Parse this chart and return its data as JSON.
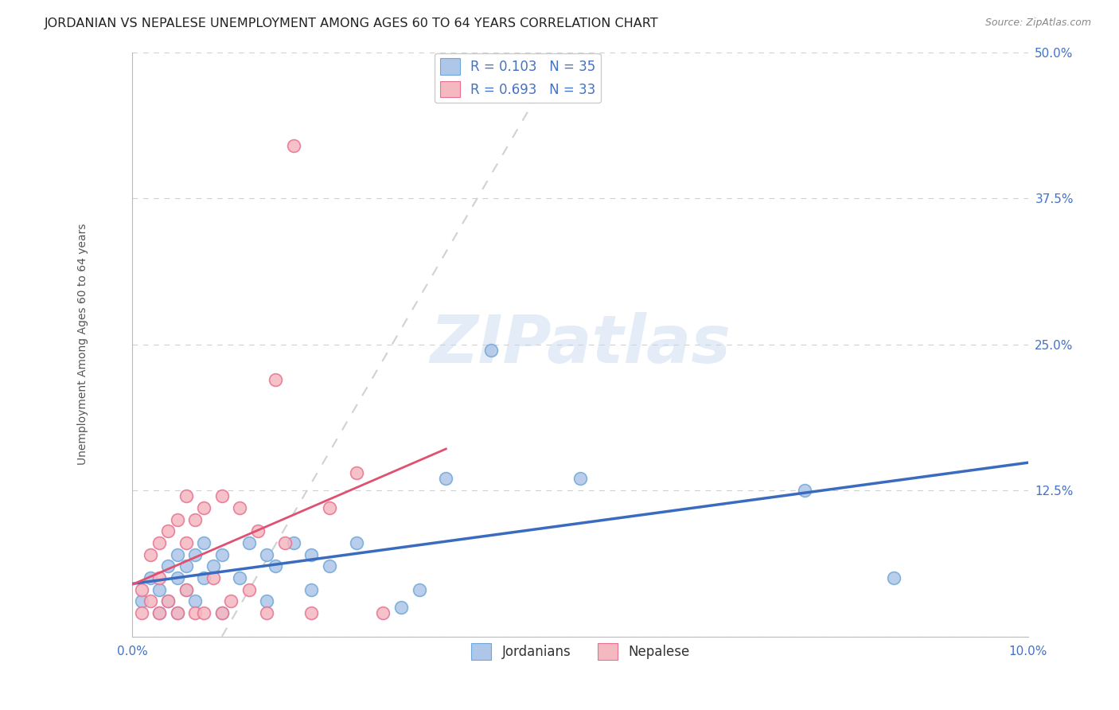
{
  "title": "JORDANIAN VS NEPALESE UNEMPLOYMENT AMONG AGES 60 TO 64 YEARS CORRELATION CHART",
  "source": "Source: ZipAtlas.com",
  "ylabel": "Unemployment Among Ages 60 to 64 years",
  "xlim": [
    0.0,
    0.1
  ],
  "ylim": [
    0.0,
    0.5
  ],
  "xticks": [
    0.0,
    0.025,
    0.05,
    0.075,
    0.1
  ],
  "xtick_labels": [
    "0.0%",
    "",
    "",
    "",
    "10.0%"
  ],
  "yticks": [
    0.0,
    0.125,
    0.25,
    0.375,
    0.5
  ],
  "ytick_labels": [
    "",
    "12.5%",
    "25.0%",
    "37.5%",
    "50.0%"
  ],
  "legend_entries": [
    {
      "label": "R = 0.103   N = 35",
      "color": "#aec6e8",
      "edge": "#6fa8d8"
    },
    {
      "label": "R = 0.693   N = 33",
      "color": "#f4b8c1",
      "edge": "#e87090"
    }
  ],
  "jordanians_x": [
    0.001,
    0.002,
    0.003,
    0.003,
    0.004,
    0.004,
    0.005,
    0.005,
    0.005,
    0.006,
    0.006,
    0.007,
    0.007,
    0.008,
    0.008,
    0.009,
    0.01,
    0.01,
    0.012,
    0.013,
    0.015,
    0.015,
    0.016,
    0.018,
    0.02,
    0.02,
    0.022,
    0.025,
    0.03,
    0.032,
    0.035,
    0.04,
    0.05,
    0.075,
    0.085
  ],
  "jordanians_y": [
    0.03,
    0.05,
    0.02,
    0.04,
    0.03,
    0.06,
    0.02,
    0.05,
    0.07,
    0.04,
    0.06,
    0.03,
    0.07,
    0.05,
    0.08,
    0.06,
    0.02,
    0.07,
    0.05,
    0.08,
    0.03,
    0.07,
    0.06,
    0.08,
    0.04,
    0.07,
    0.06,
    0.08,
    0.025,
    0.04,
    0.135,
    0.245,
    0.135,
    0.125,
    0.05
  ],
  "nepalese_x": [
    0.001,
    0.001,
    0.002,
    0.002,
    0.003,
    0.003,
    0.003,
    0.004,
    0.004,
    0.005,
    0.005,
    0.006,
    0.006,
    0.006,
    0.007,
    0.007,
    0.008,
    0.008,
    0.009,
    0.01,
    0.01,
    0.011,
    0.012,
    0.013,
    0.014,
    0.015,
    0.016,
    0.017,
    0.018,
    0.02,
    0.022,
    0.025,
    0.028
  ],
  "nepalese_y": [
    0.02,
    0.04,
    0.03,
    0.07,
    0.02,
    0.05,
    0.08,
    0.03,
    0.09,
    0.02,
    0.1,
    0.04,
    0.08,
    0.12,
    0.02,
    0.1,
    0.02,
    0.11,
    0.05,
    0.02,
    0.12,
    0.03,
    0.11,
    0.04,
    0.09,
    0.02,
    0.22,
    0.08,
    0.42,
    0.02,
    0.11,
    0.14,
    0.02
  ],
  "jordanian_line_color": "#3a6bbf",
  "nepalese_line_color": "#e05070",
  "jordanian_scatter_color": "#aec6e8",
  "jordanian_scatter_edge": "#6fa8d8",
  "nepalese_scatter_color": "#f4b8c1",
  "nepalese_scatter_edge": "#e87090",
  "diag_line_color": "#cccccc",
  "grid_color": "#d0d0d0",
  "background_color": "#ffffff",
  "title_color": "#222222",
  "tick_label_color": "#4472c4",
  "axis_label_color": "#555555",
  "source_color": "#888888",
  "watermark_text": "ZIPatlas",
  "watermark_color": "#c8daf0",
  "title_fontsize": 11.5,
  "tick_fontsize": 11,
  "ylabel_fontsize": 10,
  "legend_fontsize": 12
}
